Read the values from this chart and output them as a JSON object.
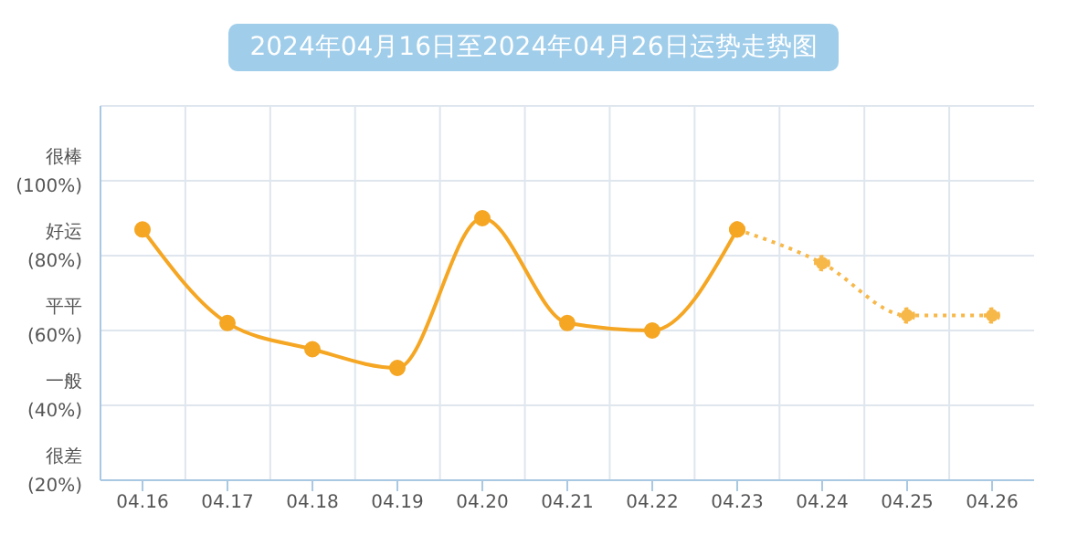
{
  "chart_data": {
    "type": "line",
    "title": "2024年04月16日至2024年04月26日运势走势图",
    "categories": [
      "04.16",
      "04.17",
      "04.18",
      "04.19",
      "04.20",
      "04.21",
      "04.22",
      "04.23",
      "04.24",
      "04.25",
      "04.26"
    ],
    "series": [
      {
        "color": "#f5a623",
        "line_style": "solid",
        "values": [
          87,
          62,
          55,
          50,
          90,
          62,
          60,
          87,
          null,
          null,
          null
        ]
      },
      {
        "color": "#f7b84a",
        "line_style": "dotted",
        "values": [
          null,
          null,
          null,
          null,
          null,
          null,
          null,
          87,
          78,
          64,
          64
        ]
      }
    ],
    "ylim": [
      20,
      120
    ],
    "yticks": [
      {
        "value": 20,
        "label": "很差\n(20%)"
      },
      {
        "value": 40,
        "label": "一般\n(40%)"
      },
      {
        "value": 60,
        "label": "平平\n(60%)"
      },
      {
        "value": 80,
        "label": "好运\n(80%)"
      },
      {
        "value": 100,
        "label": "很棒\n(100%)"
      }
    ],
    "grid": true,
    "marker": "circle",
    "legend": false
  }
}
